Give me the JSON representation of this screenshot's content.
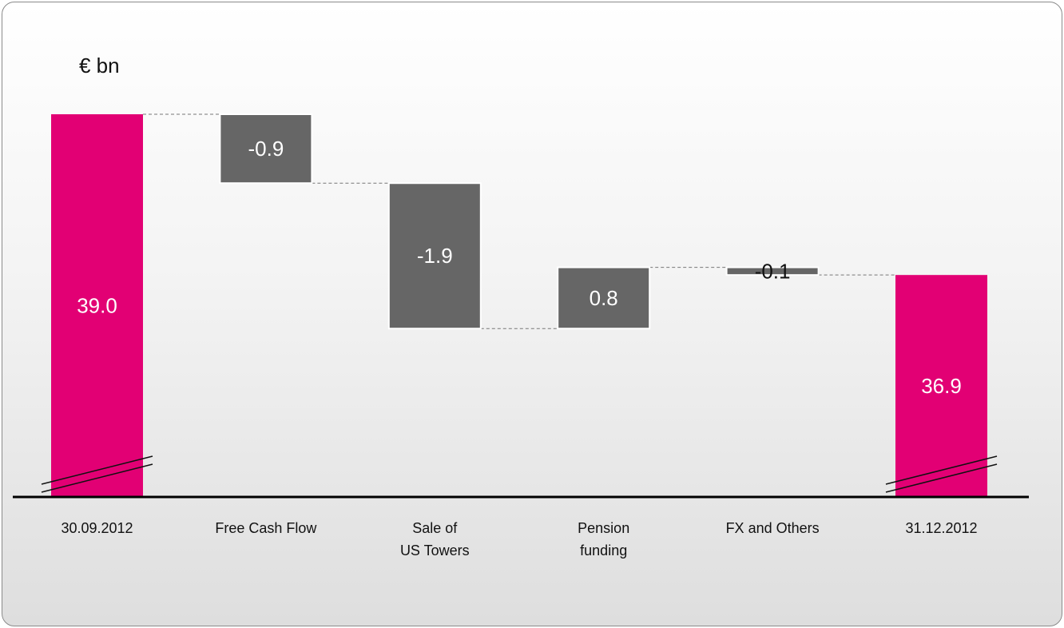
{
  "chart_data": {
    "type": "bar",
    "subtype": "waterfall",
    "unit_label": "€ bn",
    "categories": [
      {
        "lines": [
          "30.09.2012"
        ],
        "kind": "total"
      },
      {
        "lines": [
          "Free Cash Flow"
        ],
        "kind": "delta"
      },
      {
        "lines": [
          "Sale of",
          "US Towers"
        ],
        "kind": "delta"
      },
      {
        "lines": [
          "Pension",
          "funding"
        ],
        "kind": "delta"
      },
      {
        "lines": [
          "FX and Others"
        ],
        "kind": "delta"
      },
      {
        "lines": [
          "31.12.2012"
        ],
        "kind": "total"
      }
    ],
    "values": [
      39.0,
      -0.9,
      -1.9,
      0.8,
      -0.1,
      36.9
    ],
    "value_labels": [
      "39.0",
      "-0.9",
      "-1.9",
      "0.8",
      "-0.1",
      "36.9"
    ],
    "axis_break": true,
    "colors": {
      "total": "#e20074",
      "delta": "#666666",
      "total_text": "#ffffff",
      "delta_text": "#ffffff",
      "small_delta_text": "#111111",
      "connector": "#777777",
      "baseline": "#000000"
    }
  }
}
